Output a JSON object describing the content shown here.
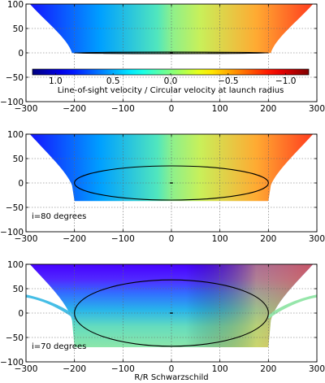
{
  "chart_data": [
    {
      "type": "heatmap",
      "panel": "top",
      "annotation": "",
      "xlim": [
        -300,
        300
      ],
      "ylim": [
        -100,
        100
      ],
      "xticks": [
        -300,
        -200,
        -100,
        0,
        100,
        200,
        300
      ],
      "yticks": [
        -100,
        -50,
        0,
        50,
        100
      ],
      "grid": true,
      "inclination_deg": 90,
      "ellipse": {
        "cx": 0,
        "cy": 0,
        "rx": 200,
        "ry": 0
      },
      "colorbar": {
        "label": "Line-of-sight velocity / Circular velocity at launch radius",
        "ticks": [
          "1.0",
          "0.5",
          "0.0",
          "−0.5",
          "−1.0"
        ],
        "tick_values": [
          1.0,
          0.5,
          0.0,
          -0.5,
          -1.0
        ],
        "range": [
          1.2,
          -1.2
        ],
        "colormap": "jet"
      }
    },
    {
      "type": "heatmap",
      "panel": "middle",
      "annotation": "i=80 degrees",
      "xlim": [
        -300,
        300
      ],
      "ylim": [
        -100,
        100
      ],
      "xticks": [
        -300,
        -200,
        -100,
        0,
        100,
        200,
        300
      ],
      "yticks": [
        -100,
        -50,
        0,
        50,
        100
      ],
      "grid": true,
      "inclination_deg": 80,
      "ellipse": {
        "cx": 0,
        "cy": 0,
        "rx": 200,
        "ry": 35
      }
    },
    {
      "type": "heatmap",
      "panel": "bottom",
      "annotation": "i=70 degrees",
      "xlim": [
        -300,
        300
      ],
      "ylim": [
        -100,
        100
      ],
      "xticks": [
        -300,
        -200,
        -100,
        0,
        100,
        200,
        300
      ],
      "yticks": [
        -100,
        -50,
        0,
        50,
        100
      ],
      "grid": true,
      "inclination_deg": 70,
      "ellipse": {
        "cx": 0,
        "cy": 0,
        "rx": 200,
        "ry": 68
      },
      "xlabel": "R/R Schwarzschild"
    }
  ]
}
